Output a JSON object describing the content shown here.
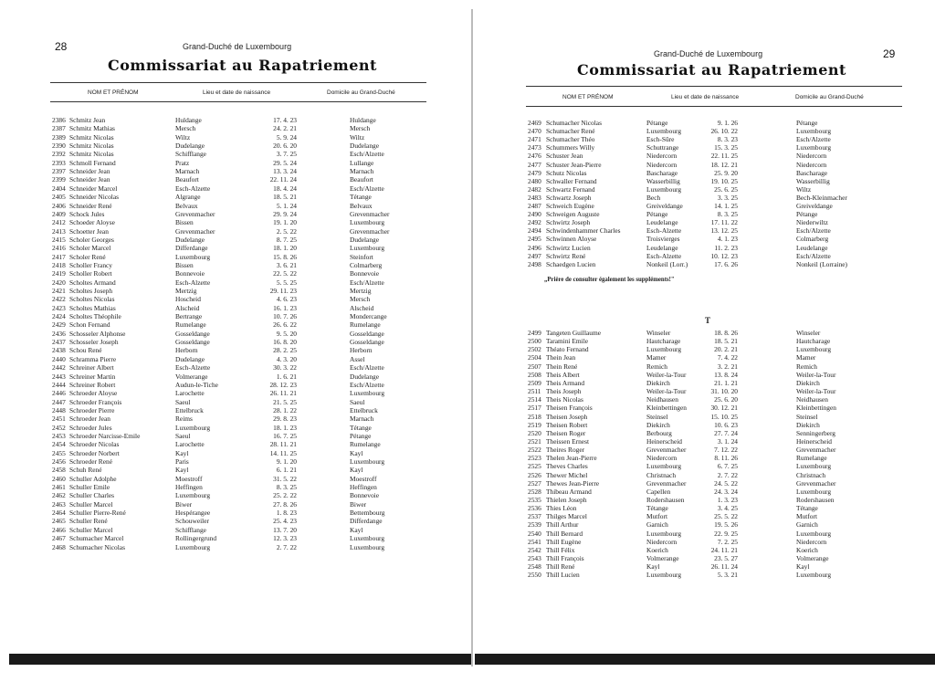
{
  "left_page": {
    "page_number": "28",
    "running_head": "Grand-Duché de Luxembourg",
    "title": "Commissariat au Rapatriement",
    "columns": [
      "NOM ET PRÉNOM",
      "Lieu et date de naissance",
      "Domicile au Grand-Duché"
    ],
    "rows": [
      [
        "2386",
        "Schmitz Jean",
        "Huldange",
        "17. 4. 23",
        "Huldange"
      ],
      [
        "2387",
        "Schmitz Mathias",
        "Mersch",
        "24. 2. 21",
        "Mersch"
      ],
      [
        "2389",
        "Schmitz Nicolas",
        "Wiltz",
        "5. 9. 24",
        "Wiltz"
      ],
      [
        "2390",
        "Schmitz Nicolas",
        "Dudelange",
        "20. 6. 20",
        "Dudelange"
      ],
      [
        "2392",
        "Schmitz Nicolas",
        "Schifflange",
        "3. 7. 25",
        "Esch/Alzette"
      ],
      [
        "2393",
        "Schmoll Fernand",
        "Pratz",
        "29. 5. 24",
        "Lullange"
      ],
      [
        "2397",
        "Schneider Jean",
        "Marnach",
        "13. 3. 24",
        "Marnach"
      ],
      [
        "2399",
        "Schneider Jean",
        "Beaufort",
        "22. 11. 24",
        "Beaufort"
      ],
      [
        "2404",
        "Schneider Marcel",
        "Esch-Alzette",
        "18. 4. 24",
        "Esch/Alzette"
      ],
      [
        "2405",
        "Schneider Nicolas",
        "Algrange",
        "18. 5. 21",
        "Tétange"
      ],
      [
        "2406",
        "Schneider René",
        "Belvaux",
        "5. 1. 24",
        "Belvaux"
      ],
      [
        "2409",
        "Schock Jules",
        "Grevenmacher",
        "29. 9. 24",
        "Grevenmacher"
      ],
      [
        "2412",
        "Schoeder Aloyse",
        "Bissen",
        "19. 1. 20",
        "Luxembourg"
      ],
      [
        "2413",
        "Schoetter Jean",
        "Grevenmacher",
        "2. 5. 22",
        "Grevenmacher"
      ],
      [
        "2415",
        "Scholer Georges",
        "Dudelange",
        "8. 7. 25",
        "Dudelange"
      ],
      [
        "2416",
        "Scholer Marcel",
        "Differdange",
        "18. 1. 20",
        "Luxembourg"
      ],
      [
        "2417",
        "Scholer René",
        "Luxembourg",
        "15. 8. 26",
        "Steinfort"
      ],
      [
        "2418",
        "Scholler Francy",
        "Bissen",
        "3. 6. 21",
        "Colmarberg"
      ],
      [
        "2419",
        "Scholler Robert",
        "Bonnevoie",
        "22. 5. 22",
        "Bonnevoie"
      ],
      [
        "2420",
        "Scholtes Armand",
        "Esch-Alzette",
        "5. 5. 25",
        "Esch/Alzette"
      ],
      [
        "2421",
        "Scholtes Joseph",
        "Mertzig",
        "29. 11. 23",
        "Mertzig"
      ],
      [
        "2422",
        "Scholtes Nicolas",
        "Hoscheid",
        "4. 6. 23",
        "Mersch"
      ],
      [
        "2423",
        "Scholtes Mathias",
        "Alscheid",
        "16. 1. 23",
        "Alscheid"
      ],
      [
        "2424",
        "Scholtes Théophile",
        "Bertrange",
        "10. 7. 26",
        "Mondercange"
      ],
      [
        "2429",
        "Schon Fernand",
        "Rumelange",
        "26. 6. 22",
        "Rumelange"
      ],
      [
        "2436",
        "Schosseler Alphonse",
        "Gosseldange",
        "9. 5. 20",
        "Gosseldange"
      ],
      [
        "2437",
        "Schosseler Joseph",
        "Gosseldange",
        "16. 8. 20",
        "Gosseldange"
      ],
      [
        "2438",
        "Schou René",
        "Herborn",
        "28. 2. 25",
        "Herborn"
      ],
      [
        "2440",
        "Schramma Pierre",
        "Dudelange",
        "4. 3. 20",
        "Assel"
      ],
      [
        "2442",
        "Schreiner Albert",
        "Esch-Alzette",
        "30. 3. 22",
        "Esch/Alzette"
      ],
      [
        "2443",
        "Schreiner Martin",
        "Volmerange",
        "1. 6. 21",
        "Dudelange"
      ],
      [
        "2444",
        "Schreiner Robert",
        "Audun-le-Tiche",
        "28. 12. 23",
        "Esch/Alzette"
      ],
      [
        "2446",
        "Schroeder Aloyse",
        "Larochette",
        "26. 11. 21",
        "Luxembourg"
      ],
      [
        "2447",
        "Schroeder François",
        "Saeul",
        "21. 5. 25",
        "Saeul"
      ],
      [
        "2448",
        "Schroeder Pierre",
        "Ettelbruck",
        "28. 1. 22",
        "Ettelbruck"
      ],
      [
        "2451",
        "Schroeder Jean",
        "Reims",
        "29. 8. 23",
        "Marnach"
      ],
      [
        "2452",
        "Schroeder Jules",
        "Luxembourg",
        "18. 1. 23",
        "Tétange"
      ],
      [
        "2453",
        "Schroeder Narcisse-Emile",
        "Saeul",
        "16. 7. 25",
        "Pétange"
      ],
      [
        "2454",
        "Schroeder Nicolas",
        "Larochette",
        "28. 11. 21",
        "Rumelange"
      ],
      [
        "2455",
        "Schroeder Norbert",
        "Kayl",
        "14. 11. 25",
        "Kayl"
      ],
      [
        "2456",
        "Schroeder René",
        "Paris",
        "9. 1. 20",
        "Luxembourg"
      ],
      [
        "2458",
        "Schuh René",
        "Kayl",
        "6. 1. 21",
        "Kayl"
      ],
      [
        "2460",
        "Schuller Adolphe",
        "Moestroff",
        "31. 5. 22",
        "Moestroff"
      ],
      [
        "2461",
        "Schuller Emile",
        "Heffingen",
        "8. 3. 25",
        "Heffingen"
      ],
      [
        "2462",
        "Schuller Charles",
        "Luxembourg",
        "25. 2. 22",
        "Bonnevoie"
      ],
      [
        "2463",
        "Schuller Marcel",
        "Biwer",
        "27. 8. 26",
        "Biwer"
      ],
      [
        "2464",
        "Schuller Pierre-René",
        "Hespérangee",
        "1. 8. 23",
        "Bettembourg"
      ],
      [
        "2465",
        "Schuller René",
        "Schouweiler",
        "25. 4. 23",
        "Differdange"
      ],
      [
        "2466",
        "Schuller Marcel",
        "Schifflange",
        "13. 7. 20",
        "Kayl"
      ],
      [
        "2467",
        "Schumacher Marcel",
        "Rollingergrund",
        "12. 3. 23",
        "Luxembourg"
      ],
      [
        "2468",
        "Schumacher Nicolas",
        "Luxembourg",
        "2. 7. 22",
        "Luxembourg"
      ]
    ]
  },
  "right_page": {
    "page_number": "29",
    "running_head": "Grand-Duché de Luxembourg",
    "title": "Commissariat au Rapatriement",
    "columns": [
      "NOM ET PRÉNOM",
      "Lieu et date de naissance",
      "Domicile au Grand-Duché"
    ],
    "rows_s": [
      [
        "2469",
        "Schumacher Nicolas",
        "Pétange",
        "9. 1. 26",
        "Pétange"
      ],
      [
        "2470",
        "Schumacher René",
        "Luxembourg",
        "26. 10. 22",
        "Luxembourg"
      ],
      [
        "2471",
        "Schumacher Théo",
        "Esch-Sûre",
        "8. 3. 23",
        "Esch/Alzette"
      ],
      [
        "2473",
        "Schummers Willy",
        "Schuttrange",
        "15. 3. 25",
        "Luxembourg"
      ],
      [
        "2476",
        "Schuster Jean",
        "Niedercorn",
        "22. 11. 25",
        "Niedercorn"
      ],
      [
        "2477",
        "Schuster Jean-Pierre",
        "Niedercorn",
        "18. 12. 21",
        "Niedercorn"
      ],
      [
        "2479",
        "Schutz Nicolas",
        "Bascharage",
        "25. 9. 20",
        "Bascharage"
      ],
      [
        "2480",
        "Schwaller Fernand",
        "Wasserbillig",
        "19. 10. 25",
        "Wasserbillig"
      ],
      [
        "2482",
        "Schwartz Fernand",
        "Luxembourg",
        "25. 6. 25",
        "Wiltz"
      ],
      [
        "2483",
        "Schwartz Joseph",
        "Bech",
        "3. 3. 25",
        "Bech-Kleinmacher"
      ],
      [
        "2487",
        "Schweich Eugène",
        "Greiveldange",
        "14. 1. 25",
        "Greiveldange"
      ],
      [
        "2490",
        "Schweigen Auguste",
        "Pétange",
        "8. 3. 25",
        "Pétange"
      ],
      [
        "2492",
        "Schwirtz Joseph",
        "Leudelange",
        "17. 11. 22",
        "Niederwiltz"
      ],
      [
        "2494",
        "Schwindenhammer Charles",
        "Esch-Alzette",
        "13. 12. 25",
        "Esch/Alzette"
      ],
      [
        "2495",
        "Schwinnen Aloyse",
        "Troisvierges",
        "4. 1. 23",
        "Colmarberg"
      ],
      [
        "2496",
        "Schwirtz Lucien",
        "Leudelange",
        "11. 2. 23",
        "Leudelange"
      ],
      [
        "2497",
        "Schwirtz René",
        "Esch-Alzette",
        "10. 12. 23",
        "Esch/Alzette"
      ],
      [
        "2498",
        "Schaedgen Lucien",
        "Nonkeil (Lorr.)",
        "17. 6. 26",
        "Nonkeil (Lorraine)"
      ]
    ],
    "note": "„Prière de consulter également les suppléments!\"",
    "section_letter": "T",
    "rows_t": [
      [
        "2499",
        "Tangeten Guillaume",
        "Winseler",
        "18. 8. 26",
        "Winseler"
      ],
      [
        "2500",
        "Taramini Emile",
        "Hautcharage",
        "18. 5. 21",
        "Hautcharage"
      ],
      [
        "2502",
        "Théato Fernand",
        "Luxembourg",
        "20. 2. 21",
        "Luxembourg"
      ],
      [
        "2504",
        "Thein Jean",
        "Mamer",
        "7. 4. 22",
        "Mamer"
      ],
      [
        "2507",
        "Thein René",
        "Remich",
        "3. 2. 21",
        "Remich"
      ],
      [
        "2508",
        "Theis Albert",
        "Weiler-la-Tour",
        "13. 8. 24",
        "Weiler-la-Tour"
      ],
      [
        "2509",
        "Theis Armand",
        "Diekirch",
        "21. 1. 21",
        "Diekirch"
      ],
      [
        "2511",
        "Theis Joseph",
        "Weiler-la-Tour",
        "31. 10. 20",
        "Weiler-la-Tour"
      ],
      [
        "2514",
        "Theis Nicolas",
        "Neidhausen",
        "25. 6. 20",
        "Neidhausen"
      ],
      [
        "2517",
        "Theisen François",
        "Kleinbettingen",
        "30. 12. 21",
        "Kleinbettingen"
      ],
      [
        "2518",
        "Theisen Joseph",
        "Steinsel",
        "15. 10. 25",
        "Steinsel"
      ],
      [
        "2519",
        "Theisen Robert",
        "Diekirch",
        "10. 6. 23",
        "Diekirch"
      ],
      [
        "2520",
        "Theisen Roger",
        "Berbourg",
        "27. 7. 24",
        "Senningerberg"
      ],
      [
        "2521",
        "Theissen Ernest",
        "Heinerscheid",
        "3. 1. 24",
        "Heinerscheid"
      ],
      [
        "2522",
        "Theires Roger",
        "Grevenmacher",
        "7. 12. 22",
        "Grevenmacher"
      ],
      [
        "2523",
        "Thelen Jean-Pierre",
        "Niedercorn",
        "8. 11. 26",
        "Rumelange"
      ],
      [
        "2525",
        "Theves Charles",
        "Luxembourg",
        "6. 7. 25",
        "Luxembourg"
      ],
      [
        "2526",
        "Thewer Michel",
        "Christnach",
        "2. 7. 22",
        "Christnach"
      ],
      [
        "2527",
        "Thewes Jean-Pierre",
        "Grevenmacher",
        "24. 5. 22",
        "Grevenmacher"
      ],
      [
        "2528",
        "Thibeau Armand",
        "Capellen",
        "24. 3. 24",
        "Luxembourg"
      ],
      [
        "2535",
        "Thielen Joseph",
        "Rodershausen",
        "1. 3. 23",
        "Rodershausen"
      ],
      [
        "2536",
        "Thies Léon",
        "Tétange",
        "3. 4. 25",
        "Tétange"
      ],
      [
        "2537",
        "Thilges Marcel",
        "Mutfort",
        "25. 5. 22",
        "Mutfort"
      ],
      [
        "2539",
        "Thill Arthur",
        "Garnich",
        "19. 5. 26",
        "Garnich"
      ],
      [
        "2540",
        "Thill Bernard",
        "Luxembourg",
        "22. 9. 25",
        "Luxembourg"
      ],
      [
        "2541",
        "Thill Eugène",
        "Niedercorn",
        "7. 2. 25",
        "Niedercorn"
      ],
      [
        "2542",
        "Thill Félix",
        "Koerich",
        "24. 11. 21",
        "Koerich"
      ],
      [
        "2543",
        "Thill François",
        "Volmerange",
        "23. 5. 27",
        "Volmerange"
      ],
      [
        "2548",
        "Thill René",
        "Kayl",
        "26. 11. 24",
        "Kayl"
      ],
      [
        "2550",
        "Thill Lucien",
        "Luxembourg",
        "5. 3. 21",
        "Luxembourg"
      ]
    ]
  }
}
